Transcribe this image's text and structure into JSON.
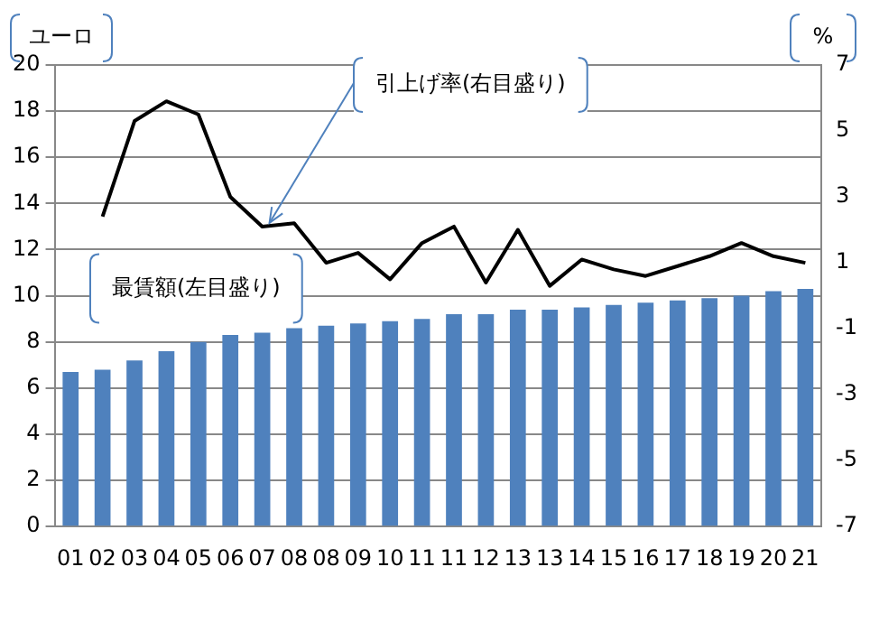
{
  "chart_data": {
    "type": "bar",
    "ylabel": "ユーロ",
    "y2label": "%",
    "categories": [
      "01",
      "02",
      "03",
      "04",
      "05",
      "06",
      "07",
      "08",
      "08",
      "09",
      "10",
      "11",
      "11",
      "12",
      "13",
      "13",
      "14",
      "15",
      "16",
      "17",
      "18",
      "19",
      "20",
      "21"
    ],
    "series": [
      {
        "name": "最賃額(左目盛り)",
        "color": "#4f81bd",
        "values": [
          6.7,
          6.8,
          7.2,
          7.6,
          8.0,
          8.3,
          8.4,
          8.6,
          8.7,
          8.8,
          8.9,
          9.0,
          9.2,
          9.2,
          9.4,
          9.4,
          9.5,
          9.6,
          9.7,
          9.8,
          9.9,
          10.0,
          10.2,
          10.3
        ]
      },
      {
        "name": "引上げ率(右目盛り)",
        "type": "line",
        "axis": "y2",
        "color": "#000000",
        "values": [
          null,
          2.4,
          5.3,
          5.9,
          5.5,
          3.0,
          2.1,
          2.2,
          1.0,
          1.3,
          0.5,
          1.6,
          2.1,
          0.4,
          2.0,
          0.3,
          1.1,
          0.8,
          0.6,
          0.9,
          1.2,
          1.6,
          1.2,
          1.0
        ]
      }
    ],
    "ylim": [
      0,
      20
    ],
    "yticks": [
      0,
      2,
      4,
      6,
      8,
      10,
      12,
      14,
      16,
      18,
      20
    ],
    "y2lim": [
      -7,
      7
    ],
    "y2ticks": [
      -7,
      -5,
      -3,
      -1,
      1,
      3,
      5,
      7
    ],
    "grid": "y",
    "legend": false,
    "marker": "none",
    "line_style": "solid"
  }
}
